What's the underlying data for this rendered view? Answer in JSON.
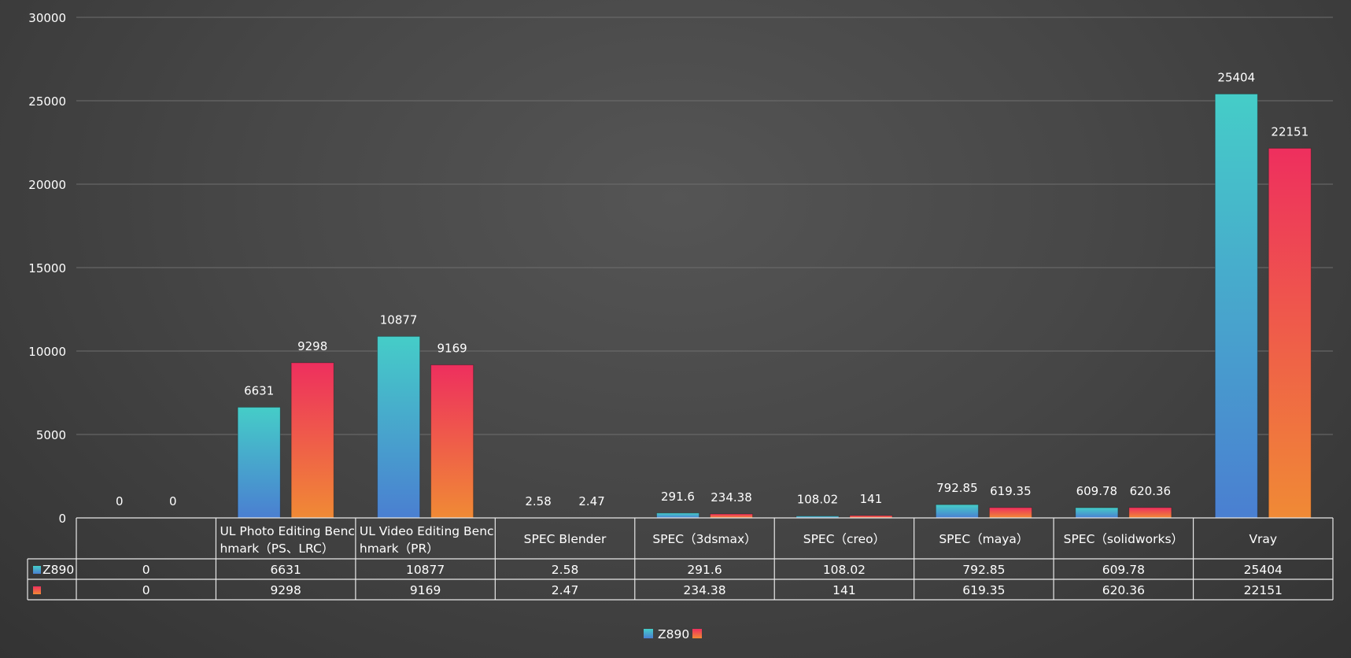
{
  "chart_data": {
    "type": "bar",
    "categories": [
      "",
      "UL Photo Editing Benchmark（PS、LRC）",
      "UL Video Editing Benchmark（PR）",
      "SPEC Blender",
      "SPEC（3dsmax）",
      "SPEC（creo）",
      "SPEC（maya）",
      "SPEC（solidworks）",
      "Vray"
    ],
    "category_display_lines": [
      [
        ""
      ],
      [
        "UL Photo Editing Benc",
        "hmark（PS、LRC）"
      ],
      [
        "UL Video Editing Benc",
        "hmark（PR）"
      ],
      [
        "SPEC Blender"
      ],
      [
        "SPEC（3dsmax）"
      ],
      [
        "SPEC（creo）"
      ],
      [
        "SPEC（maya）"
      ],
      [
        "SPEC（solidworks）"
      ],
      [
        "Vray"
      ]
    ],
    "series": [
      {
        "name": "Z890",
        "values": [
          0,
          6631,
          10877,
          2.58,
          291.6,
          108.02,
          792.85,
          609.78,
          25404
        ],
        "labels": [
          "0",
          "6631",
          "10877",
          "2.58",
          "291.6",
          "108.02",
          "792.85",
          "609.78",
          "25404"
        ],
        "color_top": "#45cdc8",
        "color_bottom": "#4a7fd1"
      },
      {
        "name": "",
        "values": [
          0,
          9298,
          9169,
          2.47,
          234.38,
          141,
          619.35,
          620.36,
          22151
        ],
        "labels": [
          "0",
          "9298",
          "9169",
          "2.47",
          "234.38",
          "141",
          "619.35",
          "620.36",
          "22151"
        ],
        "color_top": "#ee2f5e",
        "color_bottom": "#f08a35"
      }
    ],
    "y_ticks": [
      "0",
      "5000",
      "10000",
      "15000",
      "20000",
      "25000",
      "30000"
    ],
    "ylim": [
      0,
      30000
    ],
    "grid": true,
    "data_table": true,
    "legend_position": "bottom",
    "title": "",
    "xlabel": "",
    "ylabel": ""
  }
}
